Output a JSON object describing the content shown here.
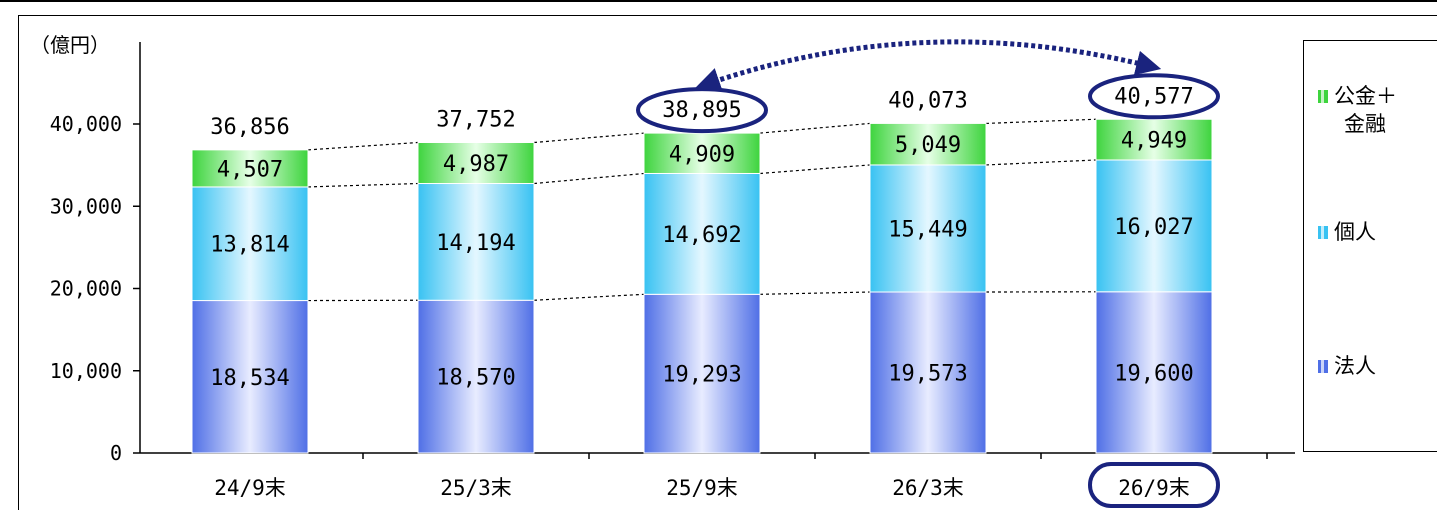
{
  "chart_data": {
    "type": "bar",
    "stacked": true,
    "unit_label": "（億円）",
    "categories": [
      "24/9末",
      "25/3末",
      "25/9末",
      "26/3末",
      "26/9末"
    ],
    "series": [
      {
        "name": "法人",
        "values": [
          18534,
          18570,
          19293,
          19573,
          19600
        ]
      },
      {
        "name": "個人",
        "values": [
          13814,
          14194,
          14692,
          15449,
          16027
        ]
      },
      {
        "name": "公金＋\n金融",
        "values": [
          4507,
          4987,
          4909,
          5049,
          4949
        ]
      }
    ],
    "totals": [
      "36,856",
      "37,752",
      "38,895",
      "40,073",
      "40,577"
    ],
    "value_labels": [
      [
        "18,534",
        "18,570",
        "19,293",
        "19,573",
        "19,600"
      ],
      [
        "13,814",
        "14,194",
        "14,692",
        "15,449",
        "16,027"
      ],
      [
        "4,507",
        "4,987",
        "4,909",
        "5,049",
        "4,949"
      ]
    ],
    "ylim": [
      0,
      40000
    ],
    "yticks": [
      0,
      10000,
      20000,
      30000,
      40000
    ],
    "ytick_labels": [
      "0",
      "10,000",
      "20,000",
      "30,000",
      "40,000"
    ],
    "grid": false,
    "legend_position": "right",
    "legend": [
      "公金＋\n金融",
      "個人",
      "法人"
    ],
    "highlighted_categories": [
      "26/9末"
    ],
    "highlighted_totals": [
      "38,895",
      "40,577"
    ],
    "colors": {
      "corporate": "#4f6fe6",
      "individual": "#38c2f2",
      "public_finance": "#3ed43e",
      "highlight": "#1a237e"
    }
  }
}
